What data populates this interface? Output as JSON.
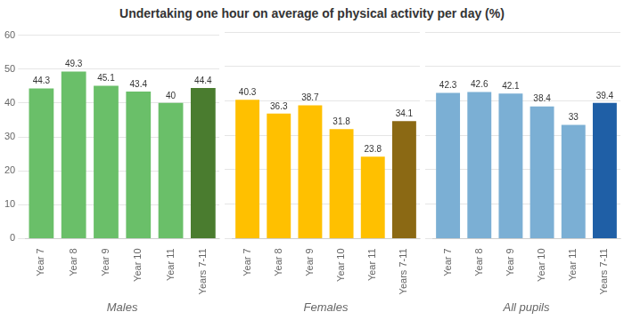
{
  "chart_data": [
    {
      "type": "bar",
      "title": "Undertaking one hour on average of physical activity per day (%)",
      "xlabel": "Males",
      "categories": [
        "Year 7",
        "Year 8",
        "Year 9",
        "Year 10",
        "Year 11",
        "Years 7-11"
      ],
      "values": [
        44.3,
        49.3,
        45.1,
        43.4,
        40.0,
        44.4
      ],
      "colors": [
        "#6abf69",
        "#6abf69",
        "#6abf69",
        "#6abf69",
        "#6abf69",
        "#4a7c2f"
      ],
      "ylim": [
        0,
        60
      ],
      "yticks": [
        0,
        10,
        20,
        30,
        40,
        50,
        60
      ],
      "grid": true,
      "data_labels": true
    },
    {
      "type": "bar",
      "xlabel": "Females",
      "categories": [
        "Year 7",
        "Year 8",
        "Year 9",
        "Year 10",
        "Year 11",
        "Years 7-11"
      ],
      "values": [
        40.3,
        36.3,
        38.7,
        31.8,
        23.8,
        34.1
      ],
      "colors": [
        "#ffc000",
        "#ffc000",
        "#ffc000",
        "#ffc000",
        "#ffc000",
        "#8b6914"
      ],
      "ylim": [
        0,
        60
      ],
      "yticks": [
        0,
        10,
        20,
        30,
        40,
        50,
        60
      ],
      "grid": true,
      "data_labels": true,
      "tick_labels": "x"
    },
    {
      "type": "bar",
      "xlabel": "All pupils",
      "categories": [
        "Year 7",
        "Year 8",
        "Year 9",
        "Year 10",
        "Year 11",
        "Years 7-11"
      ],
      "values": [
        42.3,
        42.6,
        42.1,
        38.4,
        33.0,
        39.4
      ],
      "colors": [
        "#7bafd4",
        "#7bafd4",
        "#7bafd4",
        "#7bafd4",
        "#7bafd4",
        "#1f5fa6"
      ],
      "ylim": [
        0,
        60
      ],
      "yticks": [
        0,
        10,
        20,
        30,
        40,
        50,
        60
      ],
      "grid": true,
      "data_labels": true,
      "tick_labels": "x"
    }
  ]
}
